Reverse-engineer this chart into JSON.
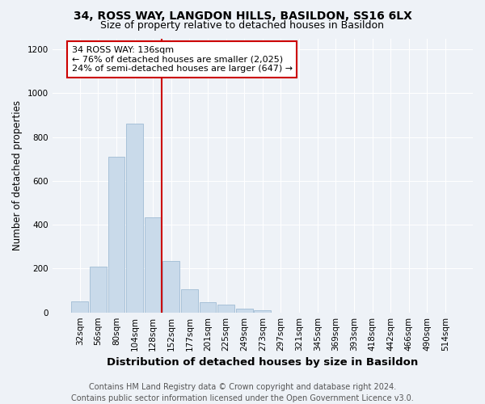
{
  "title": "34, ROSS WAY, LANGDON HILLS, BASILDON, SS16 6LX",
  "subtitle": "Size of property relative to detached houses in Basildon",
  "xlabel": "Distribution of detached houses by size in Basildon",
  "ylabel": "Number of detached properties",
  "categories": [
    "32sqm",
    "56sqm",
    "80sqm",
    "104sqm",
    "128sqm",
    "152sqm",
    "177sqm",
    "201sqm",
    "225sqm",
    "249sqm",
    "273sqm",
    "297sqm",
    "321sqm",
    "345sqm",
    "369sqm",
    "393sqm",
    "418sqm",
    "442sqm",
    "466sqm",
    "490sqm",
    "514sqm"
  ],
  "values": [
    50,
    210,
    710,
    860,
    435,
    235,
    105,
    47,
    35,
    17,
    10,
    0,
    0,
    0,
    0,
    0,
    0,
    0,
    0,
    0,
    0
  ],
  "bar_color": "#c9daea",
  "bar_edge_color": "#a0bcd4",
  "vline_index": 4.5,
  "vline_color": "#cc0000",
  "annotation_line1": "34 ROSS WAY: 136sqm",
  "annotation_line2": "← 76% of detached houses are smaller (2,025)",
  "annotation_line3": "24% of semi-detached houses are larger (647) →",
  "annotation_box_color": "#ffffff",
  "annotation_box_edge": "#cc0000",
  "ylim": [
    0,
    1250
  ],
  "yticks": [
    0,
    200,
    400,
    600,
    800,
    1000,
    1200
  ],
  "footer": "Contains HM Land Registry data © Crown copyright and database right 2024.\nContains public sector information licensed under the Open Government Licence v3.0.",
  "bg_color": "#eef2f7",
  "plot_bg_color": "#eef2f7",
  "title_fontsize": 10,
  "subtitle_fontsize": 9,
  "xlabel_fontsize": 9.5,
  "ylabel_fontsize": 8.5,
  "tick_fontsize": 7.5,
  "annotation_fontsize": 8,
  "footer_fontsize": 7
}
